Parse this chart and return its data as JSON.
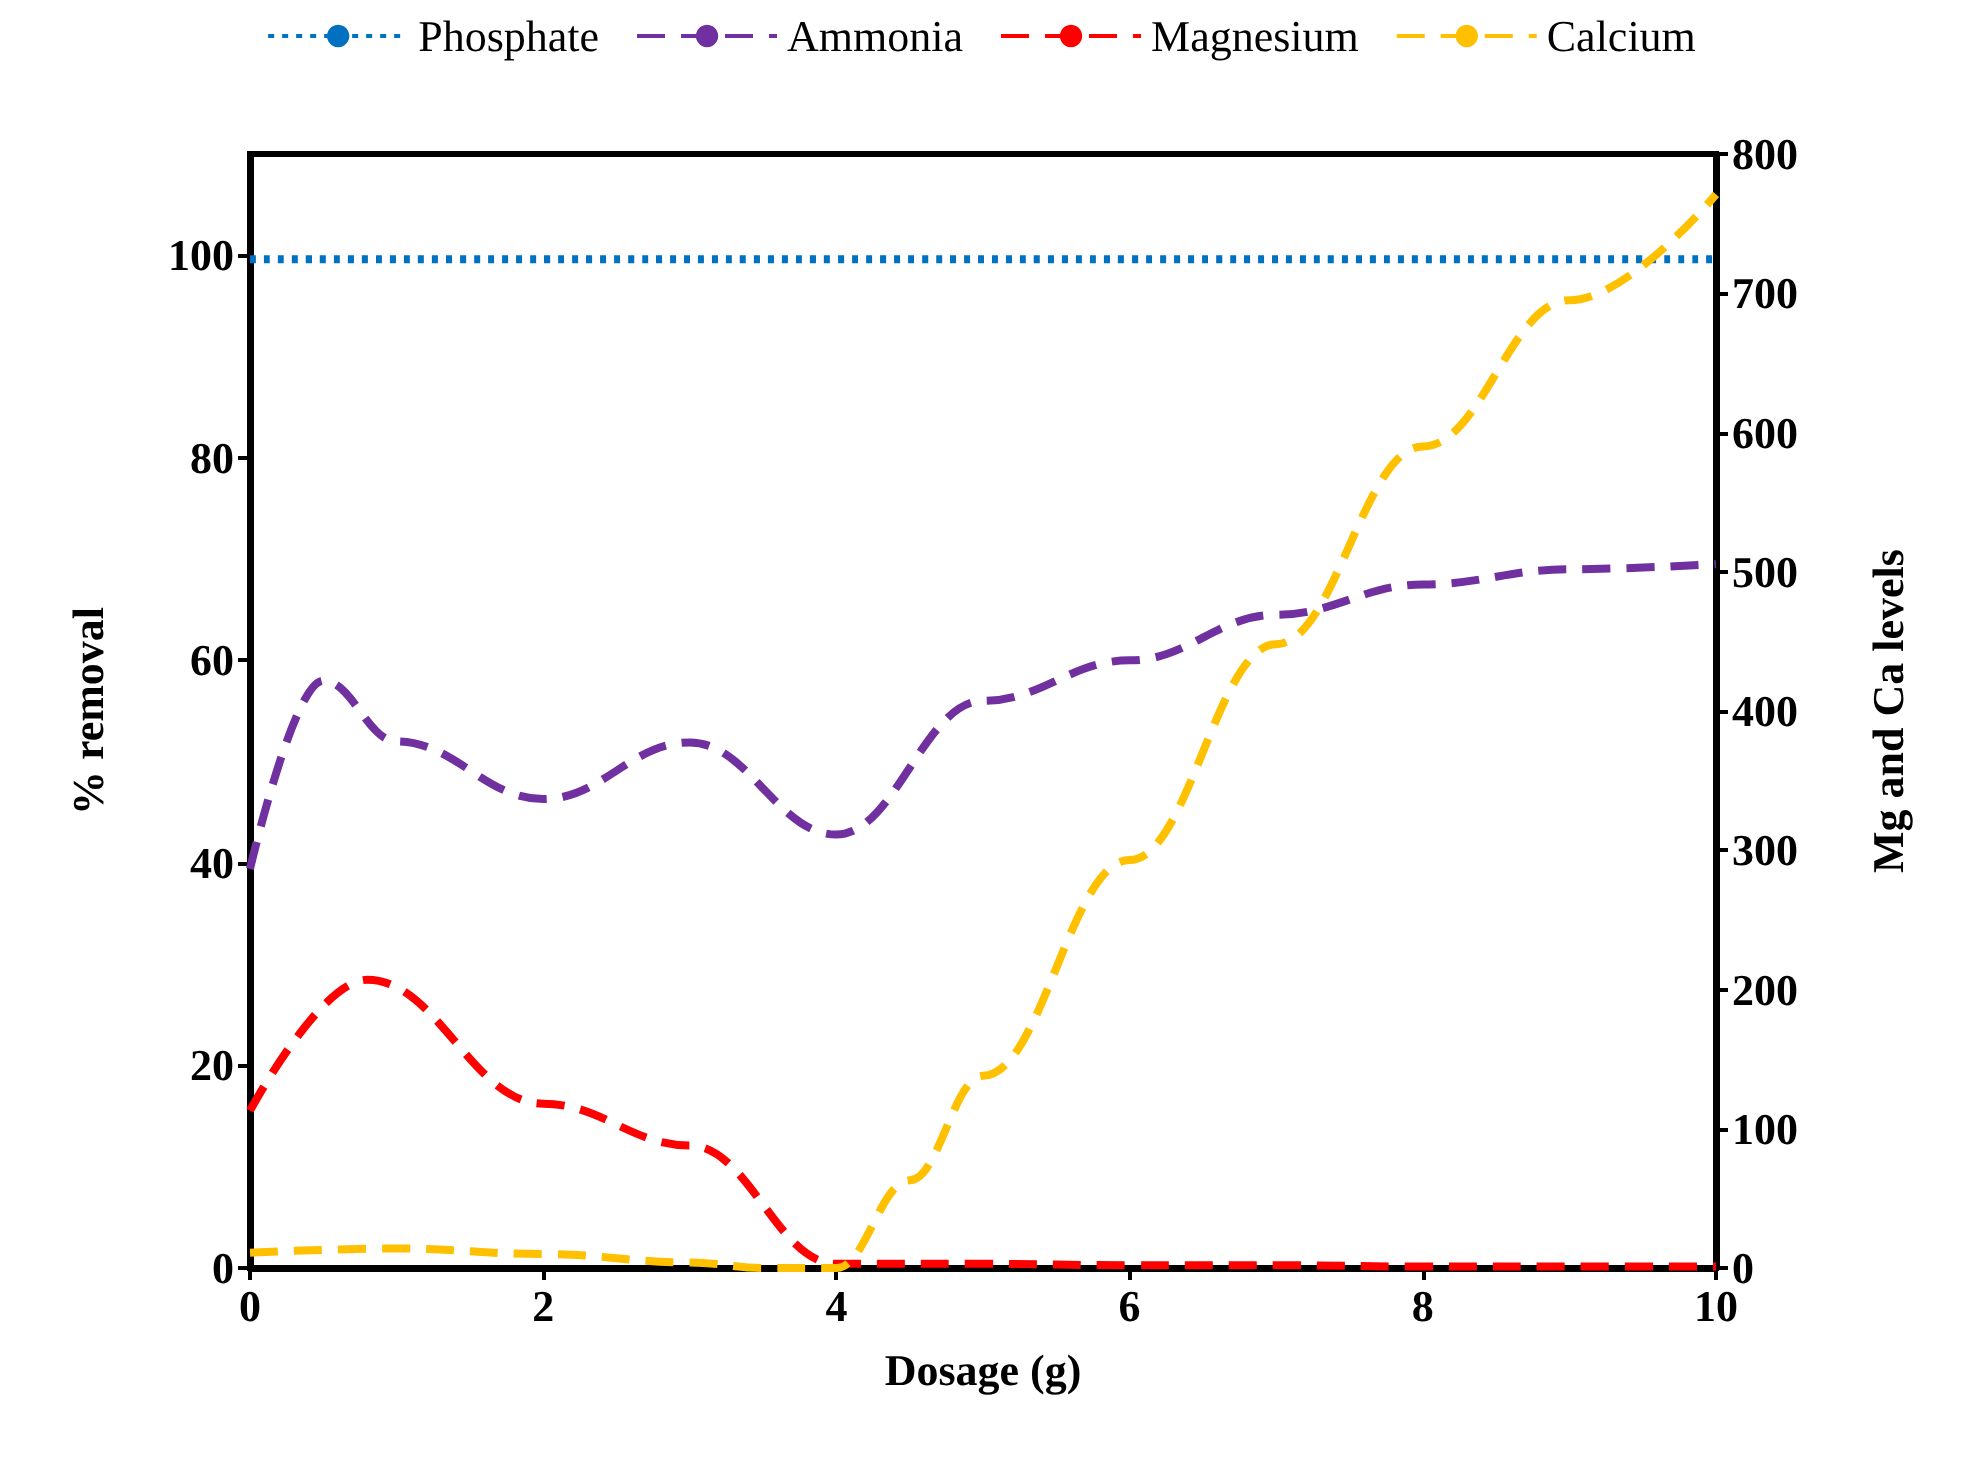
{
  "chart_data": {
    "type": "line",
    "xlabel": "Dosage (g)",
    "ylabel": "% removal",
    "y2label": "Mg and Ca levels",
    "xlim": [
      0,
      10
    ],
    "xticks": [
      0,
      2,
      4,
      6,
      8,
      10
    ],
    "ylim": [
      0,
      110
    ],
    "yticks": [
      0,
      20,
      40,
      60,
      80,
      100
    ],
    "y2lim": [
      0,
      800
    ],
    "y2ticks": [
      0,
      100,
      200,
      300,
      400,
      500,
      600,
      700,
      800
    ],
    "legend": "top",
    "grid": false,
    "marker": "none",
    "series": [
      {
        "name": "Phosphate",
        "color": "#0070c0",
        "line_style": "dotted",
        "x": [
          0,
          2,
          4,
          6,
          8,
          10
        ],
        "values": [
          99.6,
          99.6,
          99.6,
          99.6,
          99.6,
          99.6
        ]
      },
      {
        "name": "Ammonia",
        "color": "#7030a0",
        "line_style": "dashed",
        "x": [
          0,
          0.5,
          1,
          2,
          3,
          4,
          5,
          6,
          7,
          8,
          9,
          10
        ],
        "values": [
          39.4,
          58,
          52,
          46.3,
          51.9,
          42.8,
          56,
          60,
          64.5,
          67.5,
          69,
          69.5
        ]
      },
      {
        "name": "Magnesium",
        "color": "#ff0000",
        "line_style": "dashed",
        "axis": "y2",
        "x": [
          0,
          0.8,
          2,
          3,
          4,
          5,
          6,
          7,
          8,
          9,
          10
        ],
        "values": [
          113,
          207,
          118,
          88,
          3,
          3,
          2,
          2,
          1,
          1,
          1
        ]
      },
      {
        "name": "Calcium",
        "color": "#ffc000",
        "line_style": "dashed",
        "axis": "y2",
        "x": [
          0,
          1,
          2,
          3,
          3.5,
          4,
          4.5,
          5,
          6,
          7,
          8,
          9,
          10
        ],
        "values": [
          11,
          14,
          10,
          4,
          0,
          0,
          63,
          138,
          293,
          448,
          590,
          695,
          771
        ]
      }
    ]
  }
}
